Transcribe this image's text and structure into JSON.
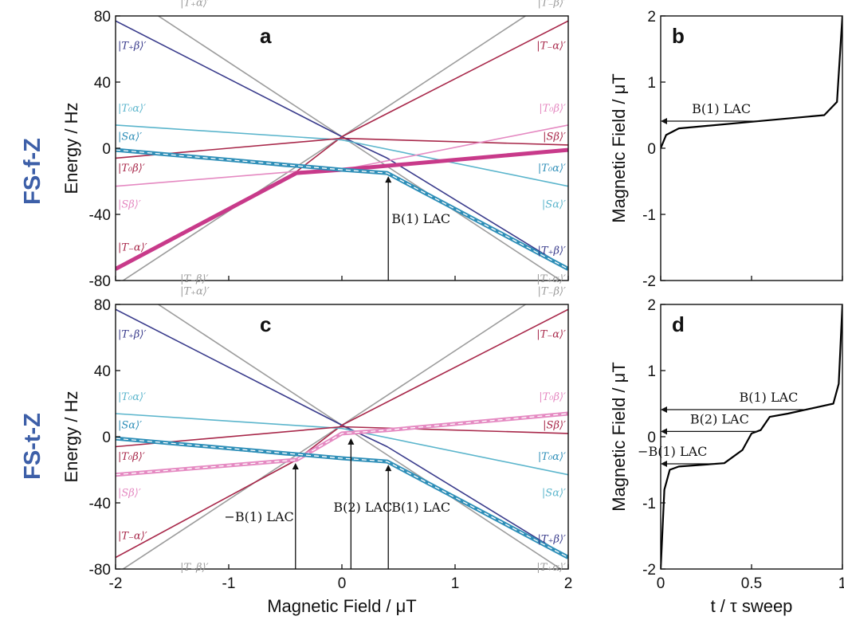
{
  "row_labels": [
    "FS-f-Z",
    "FS-t-Z"
  ],
  "colors": {
    "T_plus_beta": "#3a3c8c",
    "T_minus_alpha": "#a8284a",
    "T0_alpha": "#5bb5cc",
    "T0_beta": "#a8284a",
    "S_alpha": "#2f8fb8",
    "S_beta": "#e58ac2",
    "T_plus_alpha": "#9c9c9c",
    "T_minus_beta": "#9c9c9c",
    "magenta_bold": "#c83a8a",
    "blue_bold": "#2f8fb8"
  },
  "chart_data": [
    {
      "id": "a",
      "type": "line",
      "panel_label": "a",
      "xlabel": "",
      "ylabel": "Energy / Hz",
      "xlim": [
        -2,
        2
      ],
      "ylim": [
        -80,
        80
      ],
      "yticks": [
        "80",
        "40",
        "0",
        "-40",
        "-80"
      ],
      "series": [
        {
          "name": "|T₊α⟩′",
          "color": "#9c9c9c",
          "points": [
            [
              -2,
              97
            ],
            [
              0,
              7
            ],
            [
              2,
              -83
            ]
          ]
        },
        {
          "name": "|T₋β⟩′",
          "color": "#9c9c9c",
          "points": [
            [
              -2,
              -83
            ],
            [
              0,
              7
            ],
            [
              2,
              97
            ]
          ]
        },
        {
          "name": "|T₊β⟩′",
          "color": "#3a3c8c",
          "points": [
            [
              -2,
              77
            ],
            [
              0,
              7
            ],
            [
              0.4,
              -6
            ],
            [
              2,
              -73
            ]
          ]
        },
        {
          "name": "|T₋α⟩′",
          "color": "#a8284a",
          "points": [
            [
              -2,
              -73
            ],
            [
              -0.4,
              -14
            ],
            [
              0,
              7
            ],
            [
              2,
              77
            ]
          ]
        },
        {
          "name": "|T₀α⟩′",
          "color": "#5bb5cc",
          "points": [
            [
              -2,
              14
            ],
            [
              0,
              5
            ],
            [
              2,
              -23
            ]
          ]
        },
        {
          "name": "|T₀β⟩′",
          "color": "#a8284a",
          "points": [
            [
              -2,
              -6
            ],
            [
              0,
              6
            ],
            [
              2,
              2
            ]
          ]
        },
        {
          "name": "|Sα⟩′",
          "color": "#2f8fb8",
          "points": [
            [
              -2,
              -1
            ],
            [
              -0.5,
              -11
            ],
            [
              0,
              -13
            ],
            [
              0.4,
              -15
            ],
            [
              2,
              -73
            ]
          ]
        },
        {
          "name": "|Sβ⟩′",
          "color": "#e58ac2",
          "points": [
            [
              -2,
              -23
            ],
            [
              -0.4,
              -14
            ],
            [
              0,
              -13
            ],
            [
              2,
              14
            ]
          ]
        },
        {
          "name": "",
          "color": "#c83a8a",
          "bold": true,
          "points": [
            [
              -2,
              -73
            ],
            [
              -0.4,
              -15
            ],
            [
              0,
              -13
            ],
            [
              2,
              -1
            ]
          ]
        },
        {
          "name": "",
          "color": "#2f8fb8",
          "bold": true,
          "dashed_center": true,
          "points": [
            [
              -2,
              -1
            ],
            [
              0,
              -13
            ],
            [
              0.4,
              -15
            ],
            [
              2,
              -73
            ]
          ]
        }
      ],
      "annotations": [
        {
          "label": "B(1) LAC",
          "x": 0.41
        }
      ]
    },
    {
      "id": "b",
      "type": "line",
      "panel_label": "b",
      "xlabel": "",
      "ylabel": "Magnetic Field / μT",
      "xlim": [
        0,
        1
      ],
      "ylim": [
        -2,
        2
      ],
      "yticks": [
        "2",
        "1",
        "0",
        "-1",
        "-2"
      ],
      "series": [
        {
          "name": "",
          "color": "#000000",
          "points": [
            [
              0,
              0
            ],
            [
              0.03,
              0.2
            ],
            [
              0.1,
              0.3
            ],
            [
              0.5,
              0.4
            ],
            [
              0.9,
              0.5
            ],
            [
              0.97,
              0.7
            ],
            [
              1,
              2
            ]
          ]
        }
      ],
      "annotations": [
        {
          "label": "B(1) LAC",
          "y": 0.41
        }
      ]
    },
    {
      "id": "c",
      "type": "line",
      "panel_label": "c",
      "xlabel": "Magnetic Field / μT",
      "ylabel": "Energy / Hz",
      "xlim": [
        -2,
        2
      ],
      "ylim": [
        -80,
        80
      ],
      "xticks": [
        "-2",
        "-1",
        "0",
        "1",
        "2"
      ],
      "yticks": [
        "80",
        "40",
        "0",
        "-40",
        "-80"
      ],
      "series": [
        {
          "name": "|T₊α⟩′",
          "color": "#9c9c9c",
          "points": [
            [
              -2,
              97
            ],
            [
              0,
              7
            ],
            [
              2,
              -83
            ]
          ]
        },
        {
          "name": "|T₋β⟩′",
          "color": "#9c9c9c",
          "points": [
            [
              -2,
              -83
            ],
            [
              0,
              7
            ],
            [
              2,
              97
            ]
          ]
        },
        {
          "name": "|T₊β⟩′",
          "color": "#3a3c8c",
          "points": [
            [
              -2,
              77
            ],
            [
              0,
              7
            ],
            [
              0.4,
              -6
            ],
            [
              2,
              -73
            ]
          ]
        },
        {
          "name": "|T₋α⟩′",
          "color": "#a8284a",
          "points": [
            [
              -2,
              -73
            ],
            [
              -0.4,
              -14
            ],
            [
              0,
              7
            ],
            [
              2,
              77
            ]
          ]
        },
        {
          "name": "|T₀α⟩′",
          "color": "#5bb5cc",
          "points": [
            [
              -2,
              14
            ],
            [
              0,
              5
            ],
            [
              2,
              -23
            ]
          ]
        },
        {
          "name": "|T₀β⟩′",
          "color": "#a8284a",
          "points": [
            [
              -2,
              -6
            ],
            [
              0,
              6
            ],
            [
              2,
              2
            ]
          ]
        },
        {
          "name": "|Sα⟩′",
          "color": "#2f8fb8",
          "points": [
            [
              -2,
              -1
            ],
            [
              -0.5,
              -11
            ],
            [
              0,
              -13
            ],
            [
              0.4,
              -15
            ],
            [
              2,
              -73
            ]
          ]
        },
        {
          "name": "|Sβ⟩′",
          "color": "#e58ac2",
          "points": [
            [
              -2,
              -23
            ],
            [
              -0.4,
              -14
            ],
            [
              0,
              2
            ],
            [
              0.4,
              4
            ],
            [
              2,
              14
            ]
          ]
        },
        {
          "name": "",
          "color": "#e58ac2",
          "bold": true,
          "dashed_center": true,
          "points": [
            [
              -2,
              -23
            ],
            [
              -0.4,
              -14
            ],
            [
              0,
              2
            ],
            [
              0.4,
              4
            ],
            [
              2,
              14
            ]
          ]
        },
        {
          "name": "",
          "color": "#2f8fb8",
          "bold": true,
          "dashed_center": true,
          "points": [
            [
              -2,
              -1
            ],
            [
              0,
              -13
            ],
            [
              0.4,
              -15
            ],
            [
              2,
              -73
            ]
          ]
        }
      ],
      "annotations": [
        {
          "label": "−B(1) LAC",
          "x": -0.41
        },
        {
          "label": "B(2) LAC",
          "x": 0.08
        },
        {
          "label": "B(1) LAC",
          "x": 0.41
        }
      ]
    },
    {
      "id": "d",
      "type": "line",
      "panel_label": "d",
      "xlabel": "t / τ sweep",
      "ylabel": "Magnetic Field / μT",
      "xlim": [
        0,
        1
      ],
      "ylim": [
        -2,
        2
      ],
      "xticks": [
        "0",
        "0.5",
        "1"
      ],
      "yticks": [
        "2",
        "1",
        "0",
        "-1",
        "-2"
      ],
      "series": [
        {
          "name": "",
          "color": "#000000",
          "points": [
            [
              0,
              -2
            ],
            [
              0.02,
              -0.8
            ],
            [
              0.05,
              -0.5
            ],
            [
              0.1,
              -0.45
            ],
            [
              0.35,
              -0.4
            ],
            [
              0.45,
              -0.2
            ],
            [
              0.5,
              0.05
            ],
            [
              0.55,
              0.1
            ],
            [
              0.6,
              0.3
            ],
            [
              0.7,
              0.35
            ],
            [
              0.95,
              0.5
            ],
            [
              0.98,
              0.8
            ],
            [
              1,
              2
            ]
          ]
        }
      ],
      "annotations": [
        {
          "label": "B(1) LAC",
          "y": 0.41
        },
        {
          "label": "B(2) LAC",
          "y": 0.08
        },
        {
          "label": "−B(1) LAC",
          "y": -0.41
        }
      ]
    }
  ]
}
